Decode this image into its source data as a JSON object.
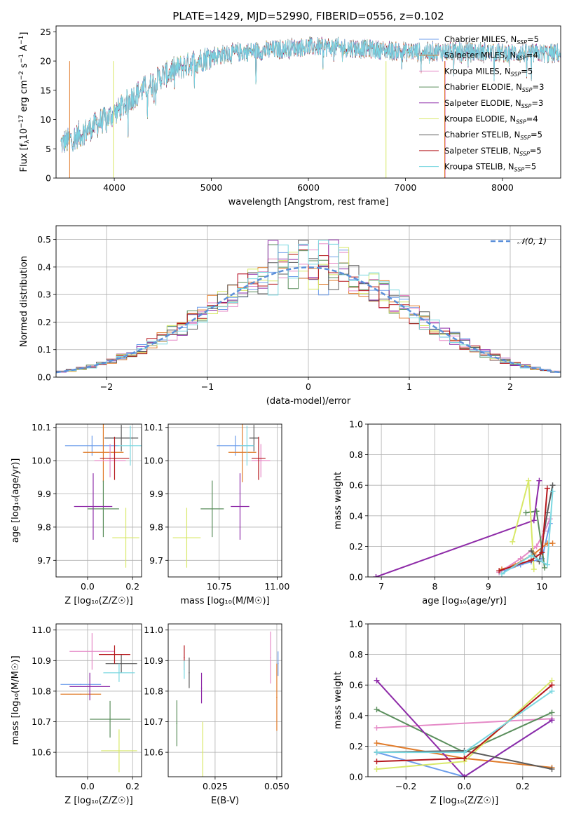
{
  "figure_title": "PLATE=1429, MJD=52990, FIBERID=0556, z=0.102",
  "colors": {
    "series": [
      "#6d9eeb",
      "#e07b2a",
      "#e58ac7",
      "#5a8e5c",
      "#8e2ba8",
      "#d8e868",
      "#5a5a5a",
      "#b5171c",
      "#7ad7e0"
    ]
  },
  "models": [
    {
      "name": "Chabrier MILES",
      "nssp": 5
    },
    {
      "name": "Salpeter MILES",
      "nssp": 4
    },
    {
      "name": "Kroupa MILES",
      "nssp": 5
    },
    {
      "name": "Chabrier ELODIE",
      "nssp": 3
    },
    {
      "name": "Salpeter ELODIE",
      "nssp": 3
    },
    {
      "name": "Kroupa ELODIE",
      "nssp": 4
    },
    {
      "name": "Chabrier STELIB",
      "nssp": 5
    },
    {
      "name": "Salpeter STELIB",
      "nssp": 5
    },
    {
      "name": "Kroupa STELIB",
      "nssp": 5
    }
  ],
  "legend_nssp_label": "N",
  "legend_nssp_sub": "SSP",
  "chart_data": [
    {
      "type": "line",
      "id": "spectrum",
      "xlabel": "wavelength [Angstrom, rest frame]",
      "ylabel_parts": [
        "Flux [f",
        "λ",
        "10",
        "−17",
        " erg cm",
        "−2",
        " s",
        "−1",
        " A",
        "−1",
        "]"
      ],
      "xlim": [
        3400,
        8600
      ],
      "ylim": [
        0,
        26
      ],
      "xticks": [
        4000,
        5000,
        6000,
        7000,
        8000
      ],
      "yticks": [
        0,
        5,
        10,
        15,
        20,
        25
      ],
      "legend_position": "top-right",
      "continuum_knots": [
        [
          3450,
          5.8
        ],
        [
          3600,
          7
        ],
        [
          3800,
          9
        ],
        [
          4000,
          11
        ],
        [
          4200,
          14
        ],
        [
          4500,
          17.5
        ],
        [
          4800,
          19.8
        ],
        [
          5000,
          20.8
        ],
        [
          5300,
          21.5
        ],
        [
          5700,
          22.0
        ],
        [
          6000,
          22.5
        ],
        [
          6500,
          22.2
        ],
        [
          7000,
          21.6
        ],
        [
          7500,
          21.6
        ],
        [
          8000,
          21.4
        ],
        [
          8600,
          21.3
        ]
      ]
    },
    {
      "type": "step",
      "id": "residual-hist",
      "xlabel": "(data-model)/error",
      "ylabel": "Normed distribution",
      "xlim": [
        -2.5,
        2.5
      ],
      "ylim": [
        0,
        0.55
      ],
      "xticks": [
        -2,
        -1,
        0,
        1,
        2
      ],
      "yticks": [
        0.0,
        0.1,
        0.2,
        0.3,
        0.4,
        0.5
      ],
      "reference_label": "𝒩(0, 1)",
      "legend_position": "top-right",
      "bin_edges_start": -2.6,
      "bin_width": 0.1,
      "n_bins": 52
    },
    {
      "type": "scatter",
      "id": "age-vs-Z",
      "xlabel": "Z [log₁₀(Z/Z☉)]",
      "ylabel": "age  [log₁₀(age/yr)]",
      "xlim": [
        -0.14,
        0.24
      ],
      "ylim": [
        9.65,
        10.11
      ],
      "xticks": [
        0.0,
        0.2
      ],
      "yticks": [
        9.7,
        9.8,
        9.9,
        10.0,
        10.1
      ],
      "points": [
        {
          "x": 0.02,
          "xerr": 0.12,
          "y": 10.045,
          "yerr": 0.03
        },
        {
          "x": 0.07,
          "xerr": 0.09,
          "y": 10.025,
          "yerr": 0.09
        },
        {
          "x": 0.1,
          "xerr": 0.07,
          "y": 10.0,
          "yerr": 0.05
        },
        {
          "x": 0.07,
          "xerr": 0.07,
          "y": 9.855,
          "yerr": 0.085
        },
        {
          "x": 0.025,
          "xerr": 0.085,
          "y": 9.862,
          "yerr": 0.1
        },
        {
          "x": 0.17,
          "xerr": 0.06,
          "y": 9.768,
          "yerr": 0.09
        },
        {
          "x": 0.15,
          "xerr": 0.075,
          "y": 10.068,
          "yerr": 0.04
        },
        {
          "x": 0.12,
          "xerr": 0.065,
          "y": 10.007,
          "yerr": 0.065
        },
        {
          "x": 0.19,
          "xerr": 0.06,
          "y": 10.045,
          "yerr": 0.06
        }
      ]
    },
    {
      "type": "scatter",
      "id": "age-vs-mass",
      "xlabel": "mass [log₁₀(M/M☉)]",
      "ylabel": "",
      "xlim": [
        10.53,
        11.02
      ],
      "ylim": [
        9.65,
        10.11
      ],
      "xticks": [
        10.75,
        11.0
      ],
      "yticks": [
        9.7,
        9.8,
        9.9,
        10.0,
        10.1
      ],
      "points": [
        {
          "x": 10.82,
          "xerr": 0.08,
          "y": 10.045,
          "yerr": 0.03
        },
        {
          "x": 10.85,
          "xerr": 0.06,
          "y": 10.025,
          "yerr": 0.09
        },
        {
          "x": 10.93,
          "xerr": 0.04,
          "y": 10.0,
          "yerr": 0.05
        },
        {
          "x": 10.72,
          "xerr": 0.05,
          "y": 9.855,
          "yerr": 0.085
        },
        {
          "x": 10.84,
          "xerr": 0.04,
          "y": 9.862,
          "yerr": 0.1
        },
        {
          "x": 10.61,
          "xerr": 0.06,
          "y": 9.768,
          "yerr": 0.09
        },
        {
          "x": 10.9,
          "xerr": 0.02,
          "y": 10.068,
          "yerr": 0.04
        },
        {
          "x": 10.92,
          "xerr": 0.03,
          "y": 10.007,
          "yerr": 0.065
        },
        {
          "x": 10.87,
          "xerr": 0.03,
          "y": 10.045,
          "yerr": 0.06
        }
      ]
    },
    {
      "type": "line",
      "id": "weight-vs-age",
      "xlabel": "age  [log₁₀(age/yr)]",
      "ylabel": "mass weight",
      "xlim": [
        6.75,
        10.35
      ],
      "ylim": [
        0,
        1
      ],
      "xticks": [
        7,
        8,
        9,
        10
      ],
      "yticks": [
        0.0,
        0.2,
        0.4,
        0.6,
        0.8,
        1.0
      ],
      "series": [
        {
          "points": [
            [
              9.3,
              0.04
            ],
            [
              9.6,
              0.08
            ],
            [
              9.8,
              0.1
            ],
            [
              10.0,
              0.12
            ],
            [
              10.15,
              0.35
            ]
          ]
        },
        {
          "points": [
            [
              9.25,
              0.05
            ],
            [
              9.5,
              0.08
            ],
            [
              9.85,
              0.15
            ],
            [
              10.1,
              0.22
            ],
            [
              10.2,
              0.22
            ]
          ]
        },
        {
          "points": [
            [
              9.2,
              0.03
            ],
            [
              9.6,
              0.12
            ],
            [
              9.9,
              0.2
            ],
            [
              10.05,
              0.3
            ],
            [
              10.15,
              0.38
            ]
          ]
        },
        {
          "points": [
            [
              9.7,
              0.42
            ],
            [
              9.9,
              0.43
            ],
            [
              10.05,
              0.06
            ]
          ]
        },
        {
          "points": [
            [
              6.9,
              0.0
            ],
            [
              9.85,
              0.37
            ],
            [
              9.95,
              0.63
            ]
          ]
        },
        {
          "points": [
            [
              9.45,
              0.23
            ],
            [
              9.75,
              0.63
            ],
            [
              9.85,
              0.05
            ]
          ]
        },
        {
          "points": [
            [
              9.8,
              0.17
            ],
            [
              9.95,
              0.1
            ],
            [
              10.1,
              0.42
            ],
            [
              10.2,
              0.6
            ]
          ]
        },
        {
          "points": [
            [
              9.2,
              0.04
            ],
            [
              9.8,
              0.11
            ],
            [
              10.0,
              0.16
            ],
            [
              10.1,
              0.58
            ]
          ]
        },
        {
          "points": [
            [
              9.25,
              0.02
            ],
            [
              9.8,
              0.14
            ],
            [
              10.1,
              0.08
            ],
            [
              10.2,
              0.56
            ]
          ]
        }
      ]
    },
    {
      "type": "scatter",
      "id": "mass-vs-Z",
      "xlabel": "Z [log₁₀(Z/Z☉)]",
      "ylabel": "mass [log₁₀(M/M☉)]",
      "xlim": [
        -0.14,
        0.24
      ],
      "ylim": [
        10.52,
        11.02
      ],
      "xticks": [
        0.0,
        0.2
      ],
      "yticks": [
        10.6,
        10.7,
        10.8,
        10.9,
        11.0
      ],
      "points": [
        {
          "x": -0.03,
          "xerr": 0.09,
          "y": 10.822,
          "yerr": 0.0
        },
        {
          "x": -0.03,
          "xerr": 0.09,
          "y": 10.79,
          "yerr": 0.0
        },
        {
          "x": 0.02,
          "xerr": 0.1,
          "y": 10.93,
          "yerr": 0.06
        },
        {
          "x": 0.1,
          "xerr": 0.09,
          "y": 10.708,
          "yerr": 0.06
        },
        {
          "x": 0.01,
          "xerr": 0.09,
          "y": 10.815,
          "yerr": 0.045
        },
        {
          "x": 0.14,
          "xerr": 0.08,
          "y": 10.605,
          "yerr": 0.07
        },
        {
          "x": 0.15,
          "xerr": 0.07,
          "y": 10.89,
          "yerr": 0.03
        },
        {
          "x": 0.12,
          "xerr": 0.07,
          "y": 10.92,
          "yerr": 0.03
        },
        {
          "x": 0.14,
          "xerr": 0.07,
          "y": 10.86,
          "yerr": 0.03
        }
      ]
    },
    {
      "type": "scatter",
      "id": "mass-vs-ebv",
      "xlabel": "E(B-V)",
      "ylabel": "",
      "xlim": [
        0.006,
        0.052
      ],
      "ylim": [
        10.52,
        11.02
      ],
      "xticks": [
        0.025,
        0.05
      ],
      "yticks": [
        10.6,
        10.7,
        10.8,
        10.9,
        11.0
      ],
      "points": [
        {
          "x": 0.0505,
          "xerr": 0.0,
          "y": 10.89,
          "yerr": 0.04
        },
        {
          "x": 0.05,
          "xerr": 0.0,
          "y": 10.78,
          "yerr": 0.11
        },
        {
          "x": 0.0475,
          "xerr": 0.0,
          "y": 10.91,
          "yerr": 0.085
        },
        {
          "x": 0.0095,
          "xerr": 0.0,
          "y": 10.695,
          "yerr": 0.075
        },
        {
          "x": 0.0195,
          "xerr": 0.0,
          "y": 10.81,
          "yerr": 0.05
        },
        {
          "x": 0.02,
          "xerr": 0.0,
          "y": 10.6,
          "yerr": 0.1
        },
        {
          "x": 0.0145,
          "xerr": 0.0,
          "y": 10.86,
          "yerr": 0.05
        },
        {
          "x": 0.0125,
          "xerr": 0.0,
          "y": 10.91,
          "yerr": 0.04
        },
        {
          "x": 0.0125,
          "xerr": 0.0,
          "y": 10.87,
          "yerr": 0.03
        }
      ]
    },
    {
      "type": "line",
      "id": "weight-vs-Z",
      "xlabel": "Z [log₁₀(Z/Z☉)]",
      "ylabel": "mass weight",
      "xlim": [
        -0.33,
        0.33
      ],
      "ylim": [
        0,
        1
      ],
      "xticks": [
        -0.2,
        0.0,
        0.2
      ],
      "yticks": [
        0.0,
        0.2,
        0.4,
        0.6,
        0.8,
        1.0
      ],
      "series": [
        {
          "points": [
            [
              -0.3,
              0.16
            ],
            [
              0.0,
              0.0
            ],
            [
              0.3,
              0.37
            ]
          ]
        },
        {
          "points": [
            [
              -0.3,
              0.22
            ],
            [
              0.0,
              0.12
            ],
            [
              0.3,
              0.06
            ]
          ]
        },
        {
          "points": [
            [
              -0.3,
              0.32
            ],
            [
              0.3,
              0.38
            ]
          ]
        },
        {
          "points": [
            [
              -0.3,
              0.44
            ],
            [
              0.0,
              0.16
            ],
            [
              0.3,
              0.42
            ]
          ]
        },
        {
          "points": [
            [
              -0.3,
              0.63
            ],
            [
              0.0,
              0.0
            ],
            [
              0.3,
              0.37
            ]
          ]
        },
        {
          "points": [
            [
              -0.3,
              0.05
            ],
            [
              0.0,
              0.1
            ],
            [
              0.3,
              0.63
            ]
          ]
        },
        {
          "points": [
            [
              -0.3,
              0.16
            ],
            [
              0.0,
              0.17
            ],
            [
              0.3,
              0.05
            ]
          ]
        },
        {
          "points": [
            [
              -0.3,
              0.1
            ],
            [
              0.0,
              0.12
            ],
            [
              0.3,
              0.6
            ]
          ]
        },
        {
          "points": [
            [
              -0.3,
              0.16
            ],
            [
              0.0,
              0.16
            ],
            [
              0.3,
              0.56
            ]
          ]
        }
      ]
    }
  ]
}
